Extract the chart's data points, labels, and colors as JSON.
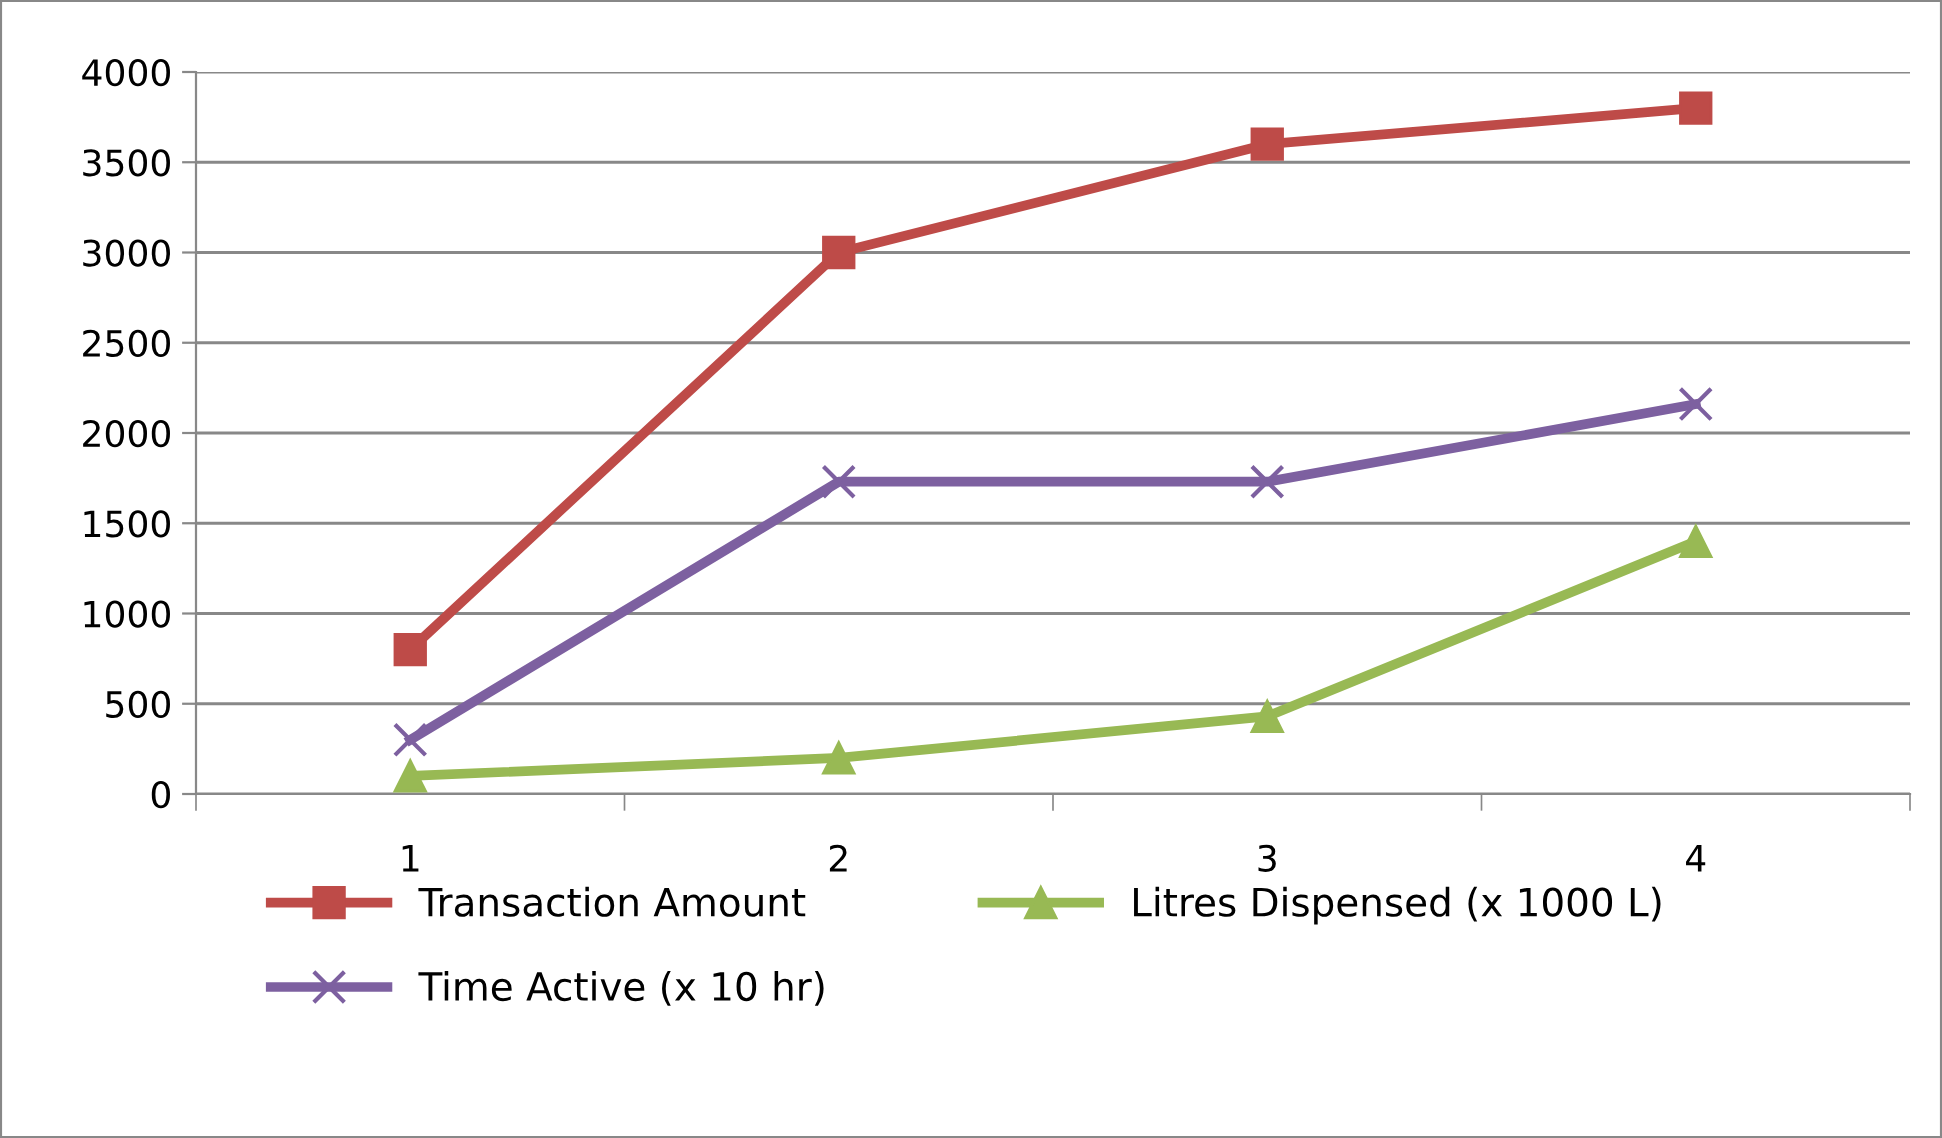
{
  "chart_data": {
    "type": "line",
    "categories": [
      "1",
      "2",
      "3",
      "4"
    ],
    "series": [
      {
        "name": "Transaction Amount",
        "color": "#be4b48",
        "marker": "square",
        "values": [
          800,
          3000,
          3600,
          3800
        ]
      },
      {
        "name": "Time Active (x 10 hr)",
        "color": "#7d60a0",
        "marker": "cross",
        "values": [
          300,
          1730,
          1730,
          2160
        ]
      },
      {
        "name": "Litres Dispensed (x 1000 L)",
        "color": "#98b954",
        "marker": "triangle",
        "values": [
          100,
          200,
          430,
          1400
        ]
      }
    ],
    "ylim": [
      0,
      4000
    ],
    "yticks": [
      0,
      500,
      1000,
      1500,
      2000,
      2500,
      3000,
      3500,
      4000
    ],
    "grid": "y",
    "legend": "bottom",
    "line_style": "solid"
  }
}
